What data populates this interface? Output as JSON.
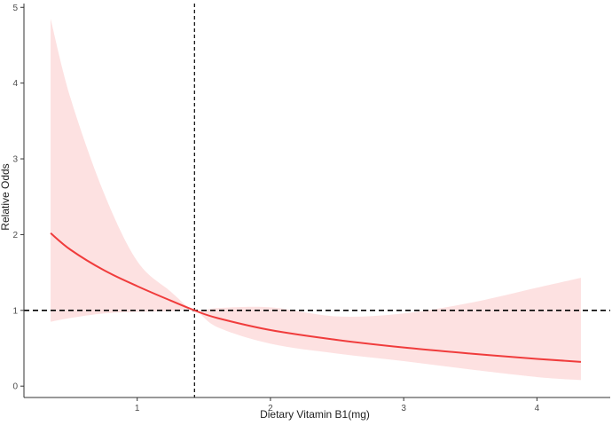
{
  "chart_data": {
    "type": "line",
    "title": "",
    "xlabel": "Dietary Vitamin B1(mg)",
    "ylabel": "Relative Odds",
    "xlim": [
      0.15,
      4.55
    ],
    "ylim": [
      -0.15,
      5.05
    ],
    "xticks": [
      1,
      2,
      3,
      4
    ],
    "yticks": [
      0,
      1,
      2,
      3,
      4,
      5
    ],
    "grid": false,
    "legend": "none",
    "reference_lines": {
      "x": 1.43,
      "y": 1
    },
    "series": [
      {
        "x": [
          0.35,
          0.5,
          0.75,
          1.0,
          1.25,
          1.43,
          1.6,
          2.0,
          2.5,
          3.0,
          3.5,
          4.0,
          4.33
        ],
        "y": [
          2.02,
          1.8,
          1.53,
          1.32,
          1.13,
          1.0,
          0.9,
          0.74,
          0.61,
          0.51,
          0.43,
          0.36,
          0.32
        ],
        "lower": [
          0.85,
          0.9,
          0.96,
          0.98,
          0.99,
          1.0,
          0.78,
          0.56,
          0.43,
          0.33,
          0.22,
          0.12,
          0.08
        ],
        "upper": [
          4.85,
          3.8,
          2.55,
          1.65,
          1.25,
          1.0,
          1.03,
          1.04,
          0.92,
          0.96,
          1.1,
          1.3,
          1.43
        ]
      }
    ],
    "colors": {
      "line": "#f03c3c",
      "band": "#fde1e1",
      "reference": "#000000",
      "axis": "#333333"
    }
  }
}
